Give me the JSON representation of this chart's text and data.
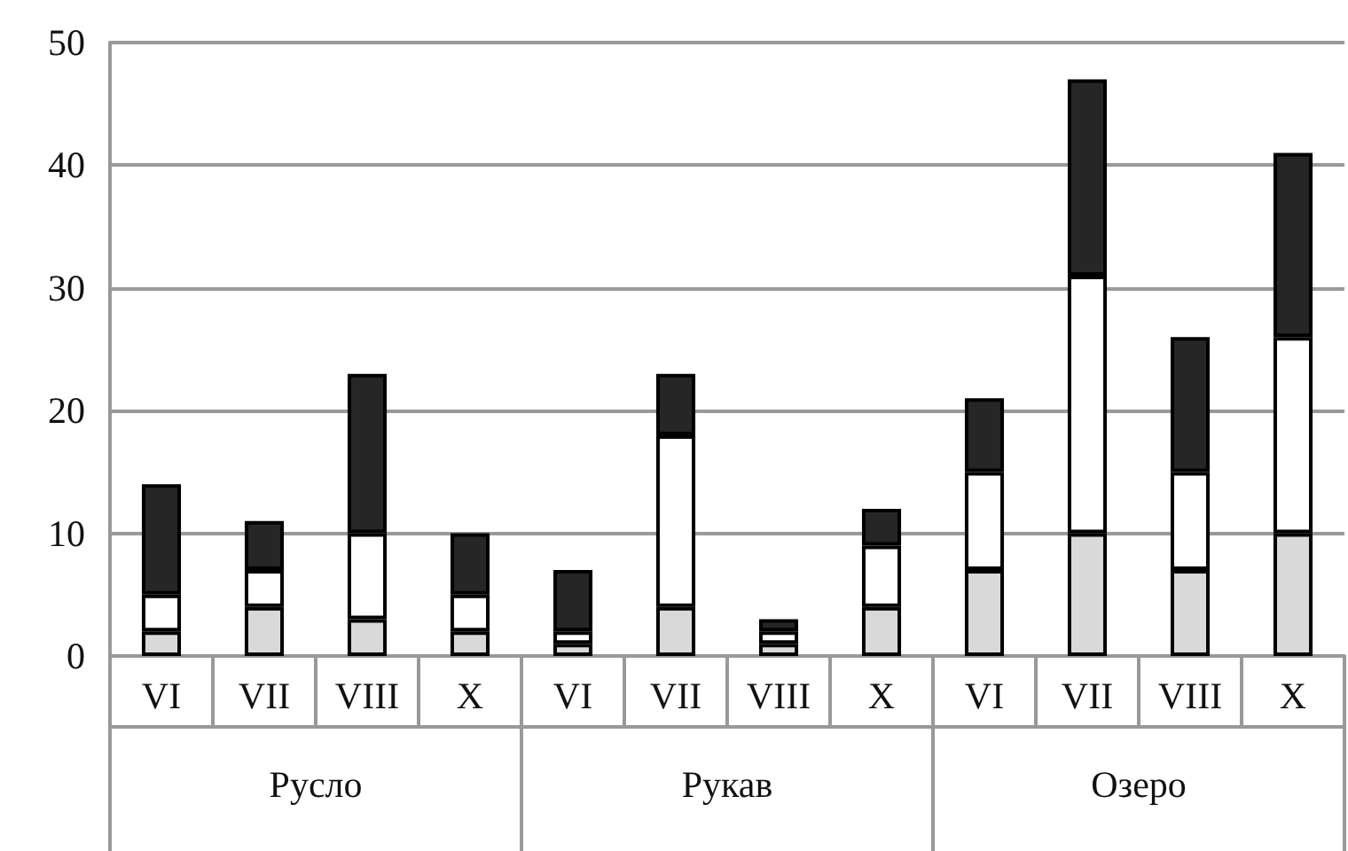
{
  "chart_data": {
    "type": "bar",
    "stacked": true,
    "categories": [
      "VI",
      "VII",
      "VIII",
      "X",
      "VI",
      "VII",
      "VIII",
      "X",
      "VI",
      "VII",
      "VIII",
      "X"
    ],
    "series": [
      {
        "color": "#d9d9d9",
        "values": [
          2,
          4,
          3,
          2,
          1,
          4,
          1,
          4,
          7,
          10,
          7,
          10
        ]
      },
      {
        "color": "#ffffff",
        "values": [
          3,
          3,
          7,
          3,
          1,
          14,
          1,
          5,
          8,
          21,
          8,
          16
        ]
      },
      {
        "color": "#262626",
        "values": [
          9,
          4,
          13,
          5,
          5,
          5,
          1,
          3,
          6,
          16,
          11,
          15
        ]
      }
    ],
    "annotations": [
      "Русло",
      "Рукав",
      "Озеро"
    ],
    "ylim": [
      0,
      50
    ],
    "yticks": [
      0,
      10,
      20,
      30,
      40,
      50
    ],
    "grid": "y"
  }
}
